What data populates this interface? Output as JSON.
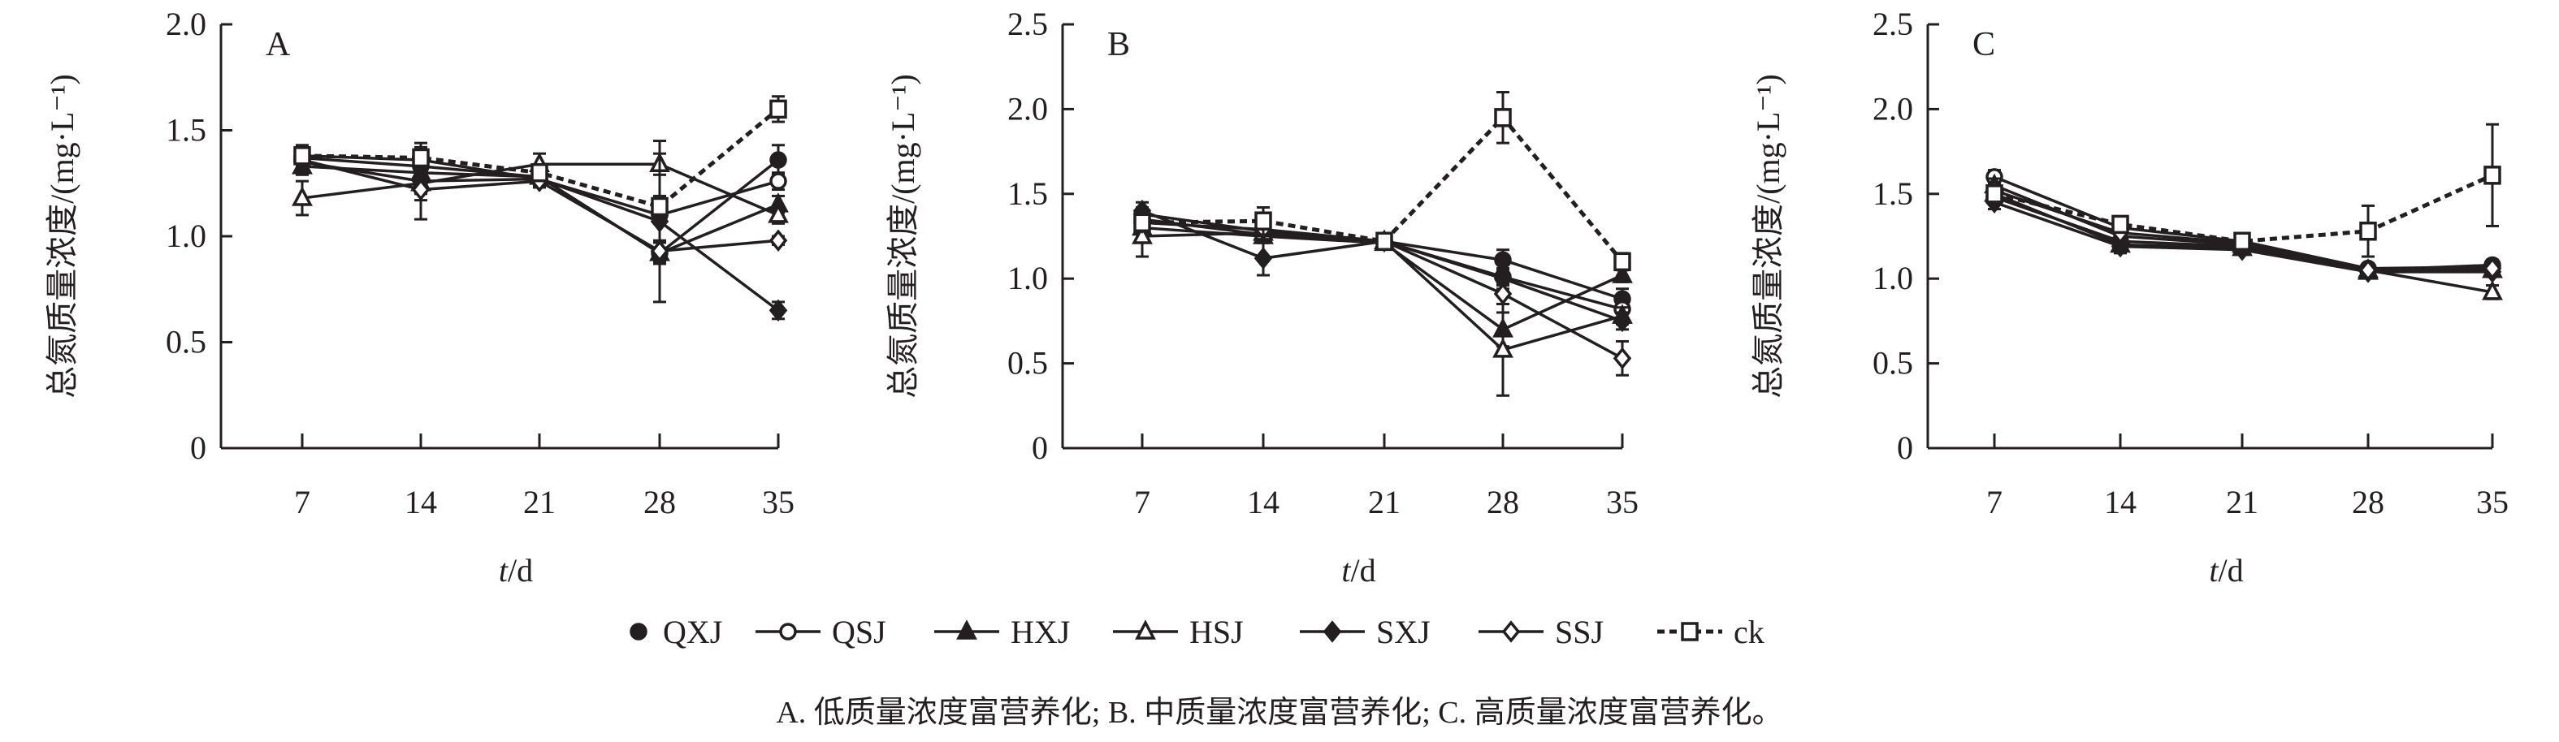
{
  "chart_data": [
    {
      "type": "line",
      "panel_label": "A",
      "xlabel_italic": "t",
      "xlabel_rest": "/d",
      "ylabel": "总氮质量浓度/(mg·L⁻¹)",
      "x": [
        7,
        14,
        21,
        28,
        35
      ],
      "xticks": [
        "7",
        "14",
        "21",
        "28",
        "35"
      ],
      "ylim": [
        0,
        2.0
      ],
      "yticks": [
        "0",
        "0.5",
        "1.0",
        "1.5",
        "2.0"
      ],
      "series": [
        {
          "name": "QXJ",
          "values": [
            1.37,
            1.33,
            1.28,
            0.92,
            1.36
          ],
          "err": [
            0.05,
            0.04,
            0.03,
            0.05,
            0.07
          ]
        },
        {
          "name": "QSJ",
          "values": [
            1.38,
            1.36,
            1.27,
            1.1,
            1.26
          ],
          "err": [
            0.04,
            0.04,
            0.03,
            0.04,
            0.04
          ]
        },
        {
          "name": "HXJ",
          "values": [
            1.33,
            1.3,
            1.28,
            0.92,
            1.15
          ],
          "err": [
            0.04,
            0.04,
            0.03,
            0.05,
            0.04
          ]
        },
        {
          "name": "HSJ",
          "values": [
            1.18,
            1.25,
            1.34,
            1.34,
            1.1
          ],
          "err": [
            0.08,
            0.05,
            0.05,
            0.05,
            0.04
          ]
        },
        {
          "name": "SXJ",
          "values": [
            1.35,
            1.26,
            1.27,
            1.07,
            0.65
          ],
          "err": [
            0.04,
            0.18,
            0.03,
            0.38,
            0.04
          ]
        },
        {
          "name": "SSJ",
          "values": [
            1.36,
            1.22,
            1.26,
            0.93,
            0.98
          ],
          "err": [
            0.04,
            0.05,
            0.03,
            0.05,
            0.02
          ]
        },
        {
          "name": "ck",
          "values": [
            1.38,
            1.37,
            1.3,
            1.14,
            1.6
          ],
          "err": [
            0.05,
            0.05,
            0.03,
            0.05,
            0.06
          ]
        }
      ]
    },
    {
      "type": "line",
      "panel_label": "B",
      "xlabel_italic": "t",
      "xlabel_rest": "/d",
      "ylabel": "总氮质量浓度/(mg·L⁻¹)",
      "x": [
        7,
        14,
        21,
        28,
        35
      ],
      "xticks": [
        "7",
        "14",
        "21",
        "28",
        "35"
      ],
      "ylim": [
        0,
        2.5
      ],
      "yticks": [
        "0",
        "0.5",
        "1.0",
        "1.5",
        "2.0",
        "2.5"
      ],
      "series": [
        {
          "name": "QXJ",
          "values": [
            1.38,
            1.28,
            1.22,
            1.11,
            0.88
          ],
          "err": [
            0.04,
            0.04,
            0.02,
            0.06,
            0.06
          ]
        },
        {
          "name": "QSJ",
          "values": [
            1.35,
            1.26,
            1.22,
            1.01,
            0.82
          ],
          "err": [
            0.04,
            0.04,
            0.02,
            0.05,
            0.05
          ]
        },
        {
          "name": "HXJ",
          "values": [
            1.3,
            1.25,
            1.21,
            0.7,
            1.02
          ],
          "err": [
            0.04,
            0.04,
            0.02,
            0.1,
            0.04
          ]
        },
        {
          "name": "HSJ",
          "values": [
            1.25,
            1.27,
            1.22,
            0.58,
            0.78
          ],
          "err": [
            0.12,
            0.04,
            0.02,
            0.27,
            0.05
          ]
        },
        {
          "name": "SXJ",
          "values": [
            1.4,
            1.12,
            1.22,
            1.0,
            0.75
          ],
          "err": [
            0.05,
            0.1,
            0.02,
            0.06,
            0.05
          ]
        },
        {
          "name": "SSJ",
          "values": [
            1.33,
            1.29,
            1.22,
            0.91,
            0.53
          ],
          "err": [
            0.04,
            0.04,
            0.02,
            0.06,
            0.1
          ]
        },
        {
          "name": "ck",
          "values": [
            1.33,
            1.34,
            1.22,
            1.95,
            1.1
          ],
          "err": [
            0.04,
            0.08,
            0.02,
            0.15,
            0.05
          ]
        }
      ]
    },
    {
      "type": "line",
      "panel_label": "C",
      "xlabel_italic": "t",
      "xlabel_rest": "/d",
      "ylabel": "总氮质量浓度/(mg·L⁻¹)",
      "x": [
        7,
        14,
        21,
        28,
        35
      ],
      "xticks": [
        "7",
        "14",
        "21",
        "28",
        "35"
      ],
      "ylim": [
        0,
        2.5
      ],
      "yticks": [
        "0",
        "0.5",
        "1.0",
        "1.5",
        "2.0",
        "2.5"
      ],
      "series": [
        {
          "name": "QXJ",
          "values": [
            1.48,
            1.22,
            1.19,
            1.05,
            1.08
          ],
          "err": [
            0.04,
            0.04,
            0.03,
            0.03,
            0.03
          ]
        },
        {
          "name": "QSJ",
          "values": [
            1.6,
            1.3,
            1.22,
            1.06,
            1.07
          ],
          "err": [
            0.04,
            0.04,
            0.03,
            0.03,
            0.03
          ]
        },
        {
          "name": "HXJ",
          "values": [
            1.55,
            1.25,
            1.2,
            1.04,
            1.05
          ],
          "err": [
            0.04,
            0.04,
            0.03,
            0.03,
            0.03
          ]
        },
        {
          "name": "HSJ",
          "values": [
            1.5,
            1.2,
            1.18,
            1.05,
            0.92
          ],
          "err": [
            0.04,
            0.04,
            0.03,
            0.03,
            0.04
          ]
        },
        {
          "name": "SXJ",
          "values": [
            1.45,
            1.19,
            1.17,
            1.04,
            1.04
          ],
          "err": [
            0.04,
            0.04,
            0.03,
            0.03,
            0.03
          ]
        },
        {
          "name": "SSJ",
          "values": [
            1.52,
            1.27,
            1.21,
            1.05,
            1.06
          ],
          "err": [
            0.04,
            0.04,
            0.03,
            0.03,
            0.03
          ]
        },
        {
          "name": "ck",
          "values": [
            1.5,
            1.32,
            1.22,
            1.28,
            1.61
          ],
          "err": [
            0.04,
            0.04,
            0.03,
            0.15,
            0.3
          ]
        }
      ]
    }
  ],
  "legend": [
    {
      "name": "QXJ",
      "marker": "filled-circle",
      "line": "none"
    },
    {
      "name": "QSJ",
      "marker": "open-circle",
      "line": "solid"
    },
    {
      "name": "HXJ",
      "marker": "filled-triangle",
      "line": "solid"
    },
    {
      "name": "HSJ",
      "marker": "open-triangle",
      "line": "solid"
    },
    {
      "name": "SXJ",
      "marker": "filled-diamond",
      "line": "solid"
    },
    {
      "name": "SSJ",
      "marker": "open-diamond",
      "line": "solid"
    },
    {
      "name": "ck",
      "marker": "open-square",
      "line": "dashed"
    }
  ],
  "caption": "A. 低质量浓度富营养化; B. 中质量浓度富营养化; C. 高质量浓度富营养化。",
  "colors": {
    "ink": "#231f20"
  }
}
